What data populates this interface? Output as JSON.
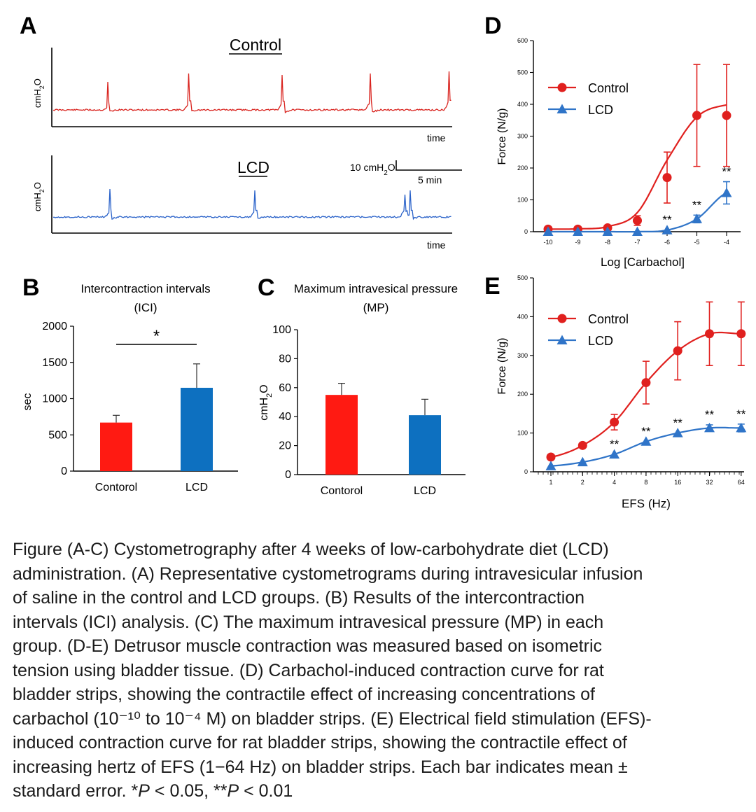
{
  "panel_letters": {
    "a": "A",
    "b": "B",
    "c": "C",
    "d": "D",
    "e": "E"
  },
  "trace_labels": {
    "control": "Control",
    "lcd": "LCD",
    "ylabel_main": "cmH",
    "ylabel_sub": "2",
    "ylabel_tail": "O",
    "time": "time",
    "scale_y_main": "10 cmH",
    "scale_y_sub": "2",
    "scale_y_tail": "O",
    "scale_x": "5 min"
  },
  "colors": {
    "control": "#e0201e",
    "lcd": "#2f74c8",
    "bar_control": "#ff1a12",
    "bar_lcd": "#0d70c0",
    "text": "#1a1a1a"
  },
  "chart_data": [
    {
      "id": "B",
      "type": "bar",
      "title": "Intercontraction intervals",
      "subtitle": "(ICI)",
      "ylabel": "sec",
      "categories": [
        "Contorol",
        "LCD"
      ],
      "values": [
        670,
        1150
      ],
      "errors": [
        100,
        330
      ],
      "ylim": [
        0,
        2000
      ],
      "yticks": [
        0,
        500,
        1000,
        1500,
        2000
      ],
      "significance": {
        "between": [
          0,
          1
        ],
        "label": "*"
      },
      "grid": false
    },
    {
      "id": "C",
      "type": "bar",
      "title": "Maximum intravesical pressure",
      "subtitle": "(MP)",
      "ylabel_main": "cmH",
      "ylabel_sub": "2",
      "ylabel_tail": "O",
      "categories": [
        "Contorol",
        "LCD"
      ],
      "values": [
        55,
        41
      ],
      "errors": [
        8,
        11
      ],
      "ylim": [
        0,
        100
      ],
      "yticks": [
        0,
        20,
        40,
        60,
        80,
        100
      ],
      "grid": false
    },
    {
      "id": "D",
      "type": "line",
      "xlabel": "Log [Carbachol]",
      "ylabel": "Force (N/g)",
      "x": [
        -10,
        -9,
        -8,
        -7,
        -6,
        -5,
        -4
      ],
      "xticks": [
        "-10",
        "-9",
        "-8",
        "-7",
        "-6",
        "-5",
        "-4"
      ],
      "ylim": [
        0,
        600
      ],
      "yticks": [
        0,
        100,
        200,
        300,
        400,
        500,
        600
      ],
      "legend_position": "top-left",
      "series": [
        {
          "name": "Control",
          "values": [
            8,
            8,
            12,
            35,
            170,
            365,
            365
          ],
          "errors": [
            0,
            0,
            5,
            15,
            80,
            160,
            160
          ],
          "marker": "circle",
          "fit": [
            8,
            9,
            16,
            60,
            225,
            360,
            398
          ]
        },
        {
          "name": "LCD",
          "values": [
            0,
            0,
            0,
            0,
            5,
            40,
            122
          ],
          "errors": [
            0,
            0,
            0,
            0,
            0,
            12,
            35
          ],
          "marker": "triangle",
          "fit": [
            0,
            0,
            0,
            0,
            5,
            40,
            122
          ],
          "significance": [
            "",
            "",
            "",
            "",
            "**",
            "**",
            "**"
          ]
        }
      ]
    },
    {
      "id": "E",
      "type": "line",
      "xlabel": "EFS (Hz)",
      "ylabel": "Force (N/g)",
      "x": [
        1,
        2,
        4,
        8,
        16,
        32,
        64
      ],
      "xticks": [
        "1",
        "2",
        "4",
        "8",
        "16",
        "32",
        "64"
      ],
      "xscale": "log2",
      "ylim": [
        0,
        500
      ],
      "yticks": [
        0,
        100,
        200,
        300,
        400,
        500
      ],
      "legend_position": "top-left",
      "series": [
        {
          "name": "Control",
          "values": [
            38,
            68,
            128,
            230,
            312,
            356,
            356
          ],
          "errors": [
            0,
            0,
            20,
            55,
            75,
            82,
            82
          ],
          "marker": "circle"
        },
        {
          "name": "LCD",
          "values": [
            15,
            25,
            45,
            78,
            100,
            113,
            113
          ],
          "errors": [
            0,
            0,
            0,
            0,
            0,
            8,
            10
          ],
          "marker": "triangle",
          "significance": [
            "",
            "",
            "**",
            "**",
            "**",
            "**",
            "**"
          ]
        }
      ]
    }
  ],
  "caption": {
    "l1": "Figure (A-C) Cystometrography after 4 weeks of low-carbohydrate diet (LCD)",
    "l2": "administration. (A) Representative cystometrograms during intravesicular infusion",
    "l3": "of saline in the control and LCD groups. (B) Results of the intercontraction",
    "l4": "intervals (ICI) analysis. (C) The maximum intravesical pressure (MP) in each",
    "l5": "group. (D-E) Detrusor muscle contraction was measured based on isometric",
    "l6": "tension using bladder tissue. (D) Carbachol-induced contraction curve for rat",
    "l7": "bladder strips, showing the contractile effect of increasing concentrations of",
    "l8": "carbachol (10⁻¹⁰ to 10⁻⁴ M) on bladder strips. (E) Electrical field stimulation (EFS)-",
    "l9": "induced contraction curve for rat bladder strips, showing the contractile effect of",
    "l10": "increasing hertz of EFS (1−64 Hz) on bladder strips. Each bar indicates mean ±",
    "l11a": "standard error. *",
    "l11b": "P",
    "l11c": " < 0.05, **",
    "l11d": "P",
    "l11e": " < 0.01"
  }
}
